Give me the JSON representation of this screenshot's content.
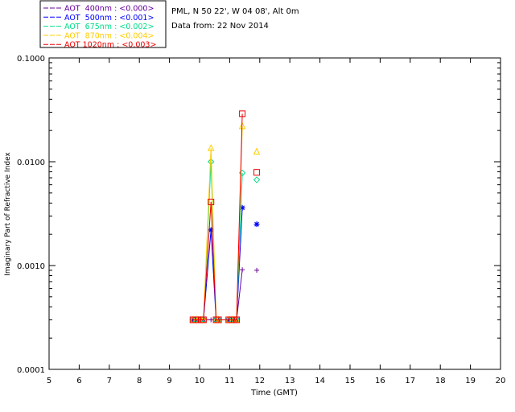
{
  "chart_data": {
    "type": "line",
    "header_lines": [
      "PML, N 50 22', W 04 08', Alt 0m",
      "Data from: 22 Nov 2014"
    ],
    "xlabel": "Time (GMT)",
    "ylabel": "Imaginary Part of Refractive Index",
    "xlim": [
      5,
      20
    ],
    "ylim": [
      0.0001,
      0.1
    ],
    "y_scale": "log",
    "x_ticks": [
      5,
      6,
      7,
      8,
      9,
      10,
      11,
      12,
      13,
      14,
      15,
      16,
      17,
      18,
      19,
      20
    ],
    "x_tick_labels": [
      "5",
      "6",
      "7",
      "8",
      "9",
      "10",
      "11",
      "12",
      "13",
      "14",
      "15",
      "16",
      "17",
      "18",
      "19",
      "20"
    ],
    "y_ticks": [
      0.0001,
      0.001,
      0.01,
      0.1
    ],
    "y_tick_labels": [
      "0.0001",
      "0.0010",
      "0.0100",
      "0.1000"
    ],
    "legend_placement": "top-left",
    "series": [
      {
        "name": "AOT  400nm : <0.000>",
        "color": "#660099",
        "marker": "plus",
        "x": [
          9.78,
          9.88,
          9.95,
          10.05,
          10.13,
          10.38,
          10.55,
          10.63,
          10.97,
          11.08,
          11.15,
          11.23,
          11.42,
          11.9
        ],
        "y": [
          0.0003,
          0.0003,
          0.0003,
          0.0003,
          0.0003,
          0.0003,
          0.0003,
          0.0003,
          0.0003,
          0.0003,
          0.0003,
          0.0003,
          0.00091,
          0.0009
        ]
      },
      {
        "name": "AOT  500nm : <0.001>",
        "color": "#0000ff",
        "marker": "asterisk",
        "x": [
          9.78,
          9.88,
          9.95,
          10.05,
          10.13,
          10.38,
          10.55,
          10.63,
          10.97,
          11.08,
          11.15,
          11.23,
          11.42,
          11.9
        ],
        "y": [
          0.0003,
          0.0003,
          0.0003,
          0.0003,
          0.0003,
          0.0022,
          0.0003,
          0.0003,
          0.0003,
          0.0003,
          0.0003,
          0.0003,
          0.0036,
          0.0025
        ]
      },
      {
        "name": "AOT  675nm : <0.002>",
        "color": "#00dd88",
        "marker": "diamond",
        "x": [
          9.78,
          9.88,
          9.95,
          10.05,
          10.13,
          10.38,
          10.55,
          10.63,
          10.97,
          11.08,
          11.15,
          11.23,
          11.42,
          11.9
        ],
        "y": [
          0.0003,
          0.0003,
          0.0003,
          0.0003,
          0.0003,
          0.01,
          0.0003,
          0.0003,
          0.0003,
          0.0003,
          0.0003,
          0.0003,
          0.0078,
          0.0067
        ]
      },
      {
        "name": "AOT  870nm : <0.004>",
        "color": "#ffcc00",
        "marker": "triangle",
        "x": [
          9.78,
          9.88,
          9.95,
          10.05,
          10.13,
          10.38,
          10.55,
          10.63,
          10.97,
          11.08,
          11.15,
          11.23,
          11.42,
          11.9
        ],
        "y": [
          0.0003,
          0.0003,
          0.0003,
          0.0003,
          0.0003,
          0.0135,
          0.0003,
          0.0003,
          0.0003,
          0.0003,
          0.0003,
          0.0003,
          0.022,
          0.0125
        ]
      },
      {
        "name": "AOT 1020nm : <0.003>",
        "color": "#ee0000",
        "marker": "square",
        "x": [
          9.78,
          9.88,
          9.95,
          10.05,
          10.13,
          10.38,
          10.55,
          10.63,
          10.97,
          11.08,
          11.15,
          11.23,
          11.42,
          11.9
        ],
        "y": [
          0.0003,
          0.0003,
          0.0003,
          0.0003,
          0.0003,
          0.0041,
          0.0003,
          0.0003,
          0.0003,
          0.0003,
          0.0003,
          0.0003,
          0.029,
          0.0079
        ]
      }
    ]
  }
}
